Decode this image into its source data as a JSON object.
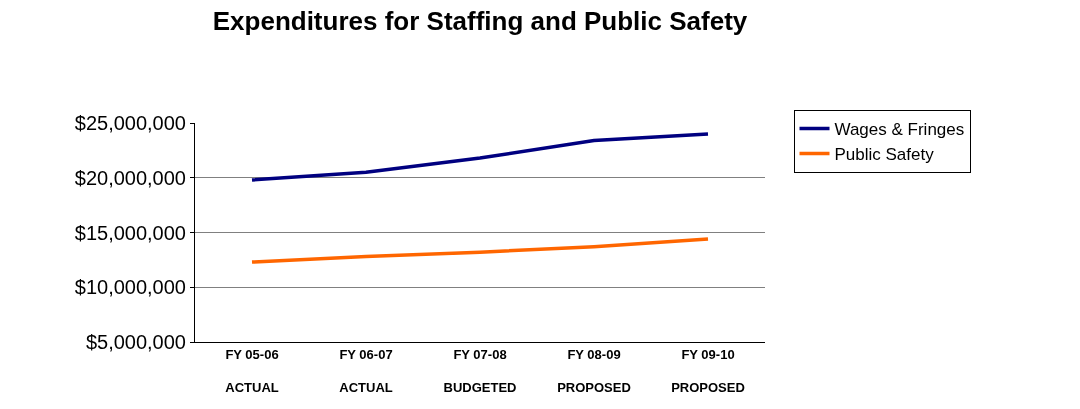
{
  "chart_data": {
    "type": "line",
    "title": "Expenditures for Staffing and Public Safety",
    "categories": [
      "FY 05-06\nACTUAL",
      "FY 06-07\nACTUAL",
      "FY 07-08\nBUDGETED",
      "FY 08-09\nPROPOSED",
      "FY 09-10\nPROPOSED"
    ],
    "series": [
      {
        "name": "Wages & Fringes",
        "color": "#000080",
        "values": [
          19800000,
          20500000,
          21800000,
          23400000,
          24000000
        ]
      },
      {
        "name": "Public Safety",
        "color": "#ff6600",
        "values": [
          12300000,
          12800000,
          13200000,
          13700000,
          14400000
        ]
      }
    ],
    "ylim": [
      5000000,
      25000000
    ],
    "yticks": [
      {
        "value": 5000000,
        "label": "$5,000,000"
      },
      {
        "value": 10000000,
        "label": "$10,000,000"
      },
      {
        "value": 15000000,
        "label": "$15,000,000"
      },
      {
        "value": 20000000,
        "label": "$20,000,000"
      },
      {
        "value": 25000000,
        "label": "$25,000,000"
      }
    ],
    "grid": "y",
    "legend": "right",
    "marker": "none",
    "line_style": "solid"
  }
}
